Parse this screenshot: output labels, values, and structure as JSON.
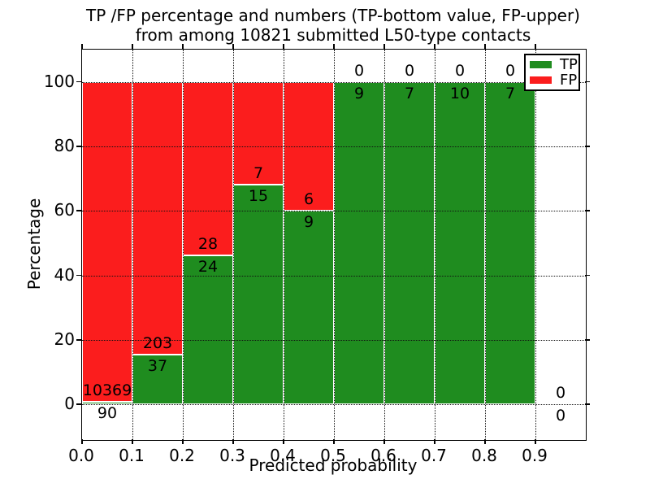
{
  "title": {
    "line1": "TP /FP percentage and numbers (TP-bottom value, FP-upper)",
    "line2": "from among 10821 submitted L50-type contacts"
  },
  "legend": {
    "position": "upper right",
    "entries": [
      {
        "label": "TP",
        "color": "#1f8c1f"
      },
      {
        "label": "FP",
        "color": "#fb1d1d"
      }
    ]
  },
  "chart_data": {
    "type": "bar",
    "stacked": true,
    "normalized_to_percent": true,
    "title": "TP /FP percentage and numbers (TP-bottom value, FP-upper) from among 10821 submitted L50-type contacts",
    "xlabel": "Predicted probability",
    "ylabel": "Percentage",
    "xlim": [
      0.0,
      1.0
    ],
    "ylim": [
      -11,
      110
    ],
    "xticks": [
      0.0,
      0.1,
      0.2,
      0.3,
      0.4,
      0.5,
      0.6,
      0.7,
      0.8,
      0.9
    ],
    "yticks": [
      0,
      20,
      40,
      60,
      80,
      100
    ],
    "grid": "dotted-black-above-bars",
    "total_submitted": 10821,
    "series": [
      {
        "name": "TP",
        "color": "#1f8c1f",
        "role": "bottom"
      },
      {
        "name": "FP",
        "color": "#fb1d1d",
        "role": "upper"
      }
    ],
    "bins": [
      {
        "x_range": [
          0.0,
          0.1
        ],
        "tp": 90,
        "fp": 10369
      },
      {
        "x_range": [
          0.1,
          0.2
        ],
        "tp": 37,
        "fp": 203
      },
      {
        "x_range": [
          0.2,
          0.3
        ],
        "tp": 24,
        "fp": 28
      },
      {
        "x_range": [
          0.3,
          0.4
        ],
        "tp": 15,
        "fp": 7
      },
      {
        "x_range": [
          0.4,
          0.5
        ],
        "tp": 9,
        "fp": 6
      },
      {
        "x_range": [
          0.5,
          0.6
        ],
        "tp": 9,
        "fp": 0
      },
      {
        "x_range": [
          0.6,
          0.7
        ],
        "tp": 7,
        "fp": 0
      },
      {
        "x_range": [
          0.7,
          0.8
        ],
        "tp": 10,
        "fp": 0
      },
      {
        "x_range": [
          0.8,
          0.9
        ],
        "tp": 7,
        "fp": 0
      },
      {
        "x_range": [
          0.9,
          1.0
        ],
        "tp": 0,
        "fp": 0
      }
    ]
  }
}
